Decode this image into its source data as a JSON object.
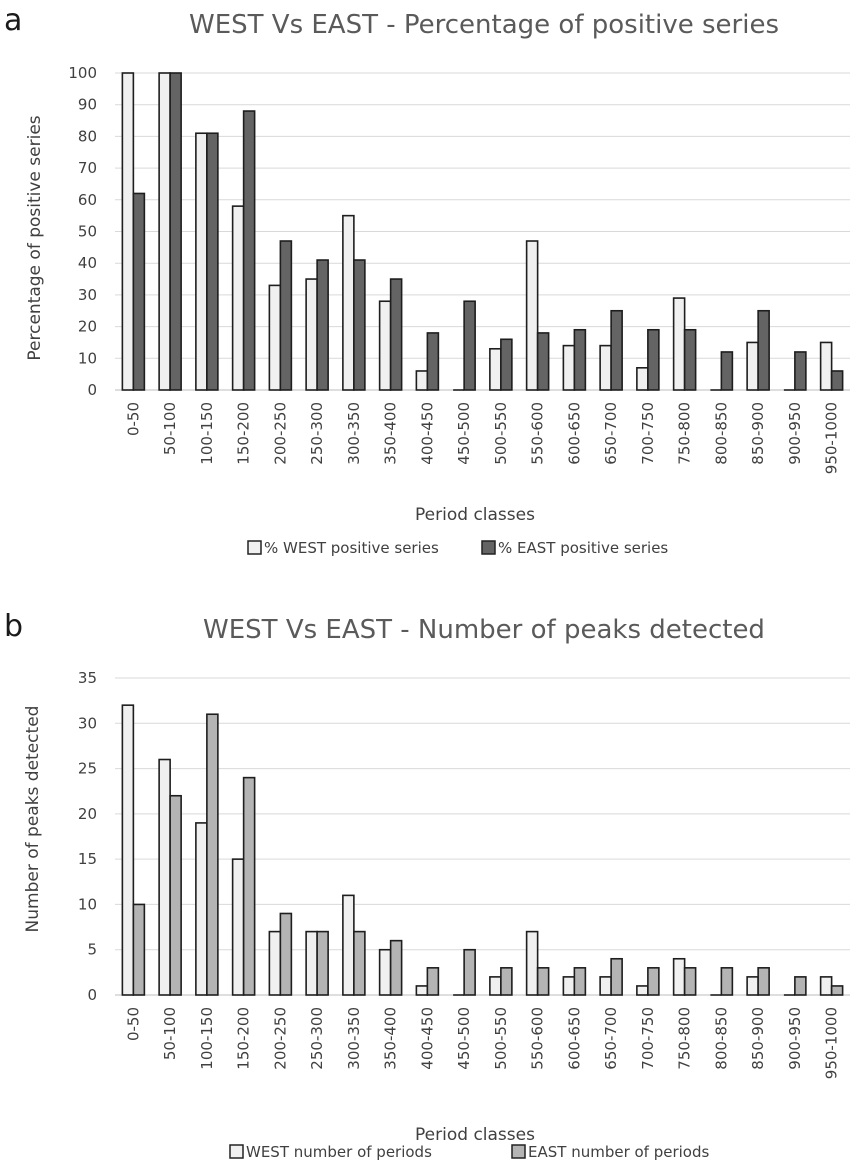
{
  "chart_data": [
    {
      "type": "bar",
      "panel": "a",
      "title": "WEST Vs EAST - Percentage of positive series",
      "xlabel": "Period classes",
      "ylabel": "Percentage of positive series",
      "ylim": [
        0,
        100
      ],
      "yticks": [
        0,
        10,
        20,
        30,
        40,
        50,
        60,
        70,
        80,
        90,
        100
      ],
      "grid": true,
      "legend": "bottom",
      "categories": [
        "0-50",
        "50-100",
        "100-150",
        "150-200",
        "200-250",
        "250-300",
        "300-350",
        "350-400",
        "400-450",
        "450-500",
        "500-550",
        "550-600",
        "600-650",
        "650-700",
        "700-750",
        "750-800",
        "800-850",
        "850-900",
        "900-950",
        "950-1000"
      ],
      "series": [
        {
          "name": "% WEST positive series",
          "color": "#f0f0f0",
          "values": [
            100,
            100,
            81,
            58,
            33,
            35,
            55,
            28,
            6,
            0,
            13,
            47,
            14,
            14,
            7,
            29,
            0,
            15,
            0,
            15
          ]
        },
        {
          "name": "% EAST positive series",
          "color": "#646464",
          "values": [
            62,
            100,
            81,
            88,
            47,
            41,
            41,
            35,
            18,
            28,
            16,
            18,
            19,
            25,
            19,
            19,
            12,
            25,
            12,
            6
          ]
        }
      ]
    },
    {
      "type": "bar",
      "panel": "b",
      "title": "WEST Vs EAST - Number of peaks detected",
      "xlabel": "Period classes",
      "ylabel": "Number of peaks detected",
      "ylim": [
        0,
        35
      ],
      "yticks": [
        0,
        5,
        10,
        15,
        20,
        25,
        30,
        35
      ],
      "grid": true,
      "legend": "bottom",
      "categories": [
        "0-50",
        "50-100",
        "100-150",
        "150-200",
        "200-250",
        "250-300",
        "300-350",
        "350-400",
        "400-450",
        "450-500",
        "500-550",
        "550-600",
        "600-650",
        "650-700",
        "700-750",
        "750-800",
        "800-850",
        "850-900",
        "900-950",
        "950-1000"
      ],
      "series": [
        {
          "name": "WEST number of periods",
          "color": "#f0f0f0",
          "values": [
            32,
            26,
            19,
            15,
            7,
            7,
            11,
            5,
            1,
            0,
            2,
            7,
            2,
            2,
            1,
            4,
            0,
            2,
            0,
            2
          ]
        },
        {
          "name": "EAST number of periods",
          "color": "#b4b4b4",
          "values": [
            10,
            22,
            31,
            24,
            9,
            7,
            7,
            6,
            3,
            5,
            3,
            3,
            3,
            4,
            3,
            3,
            3,
            3,
            2,
            1
          ]
        }
      ]
    }
  ]
}
